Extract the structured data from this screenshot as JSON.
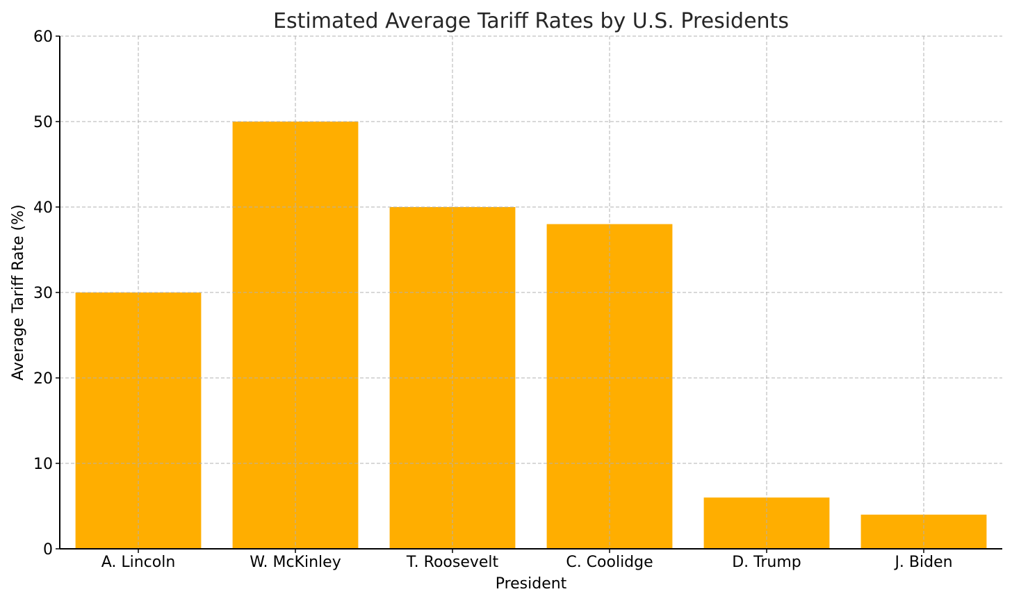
{
  "chart_data": {
    "type": "bar",
    "title": "Estimated Average Tariff Rates by U.S. Presidents",
    "xlabel": "President",
    "ylabel": "Average Tariff Rate (%)",
    "categories": [
      "A. Lincoln",
      "W. McKinley",
      "T. Roosevelt",
      "C. Coolidge",
      "D. Trump",
      "J. Biden"
    ],
    "values": [
      30,
      50,
      40,
      38,
      6,
      4
    ],
    "ylim": [
      0,
      60
    ],
    "yticks": [
      0,
      10,
      20,
      30,
      40,
      50,
      60
    ],
    "grid": true,
    "bar_color": "#FFAE00",
    "legend": "none"
  }
}
